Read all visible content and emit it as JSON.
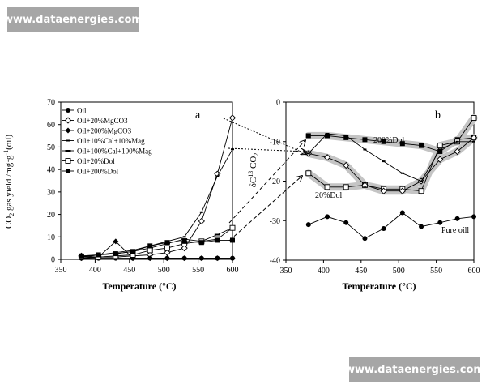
{
  "watermark": {
    "top": "www.dataenergies.com",
    "bottom": "www.dataenergies.com"
  },
  "chart_data": [
    {
      "id": "a",
      "panel_label": "a",
      "type": "line",
      "xlabel": "Temperature (°C)",
      "ylabel": "CO2 gas yield /mg·g⁻¹(oil)",
      "ylabel_parts": {
        "main": "CO",
        "sub": "2",
        "rest": " gas yield /mg·g",
        "sup": "-1",
        "tail": "(oil)"
      },
      "xlim": [
        350,
        600
      ],
      "ylim": [
        0,
        70
      ],
      "xticks": [
        350,
        400,
        450,
        500,
        550,
        600
      ],
      "yticks": [
        0,
        10,
        20,
        30,
        40,
        50,
        60,
        70
      ],
      "legend_position": "top-left",
      "series": [
        {
          "name": "Oil",
          "marker": "circle-filled",
          "x": [
            380,
            405,
            430,
            455,
            480,
            505,
            530,
            555,
            578,
            600
          ],
          "y": [
            0.5,
            0.5,
            0.5,
            0.5,
            0.5,
            0.5,
            0.5,
            0.5,
            0.5,
            0.5
          ]
        },
        {
          "name": "Oil+20%MgCO3",
          "marker": "diamond-open",
          "x": [
            380,
            405,
            430,
            455,
            480,
            505,
            530,
            555,
            578,
            600
          ],
          "y": [
            1.5,
            1,
            1,
            1.5,
            2,
            3,
            5,
            17,
            38,
            63
          ]
        },
        {
          "name": "Oil+200%MgCO3",
          "marker": "diamond-filled",
          "x": [
            380,
            405,
            430,
            455,
            480,
            505,
            530,
            555,
            578,
            600
          ],
          "y": [
            0.5,
            1,
            8,
            0.5,
            0.5,
            0.5,
            0.5,
            0.5,
            0.5,
            0.5
          ]
        },
        {
          "name": "Oil+10%Cal+10%Mag",
          "marker": "dash-small",
          "x": [
            380,
            405,
            430,
            455,
            480,
            505,
            530,
            555,
            578,
            600
          ],
          "y": [
            1,
            2,
            3,
            4,
            6,
            8,
            10,
            21,
            37,
            49
          ]
        },
        {
          "name": "Oil+100%Cal+100%Mag",
          "marker": "dash",
          "x": [
            380,
            405,
            430,
            455,
            480,
            505,
            530,
            555,
            578,
            600
          ],
          "y": [
            1,
            2,
            2.5,
            3.5,
            5,
            7,
            9,
            8,
            11,
            14
          ]
        },
        {
          "name": "Oil+20%Dol",
          "marker": "square-open",
          "x": [
            380,
            405,
            430,
            455,
            480,
            505,
            530,
            555,
            578,
            600
          ],
          "y": [
            1,
            1,
            1.5,
            2,
            4,
            5,
            7,
            8,
            9,
            14
          ]
        },
        {
          "name": "Oil+200%Dol",
          "marker": "square-filled",
          "x": [
            380,
            405,
            430,
            455,
            480,
            505,
            530,
            555,
            578,
            600
          ],
          "y": [
            1.5,
            2,
            2.5,
            3.5,
            6,
            7.5,
            8,
            7.5,
            8.5,
            8.5
          ]
        }
      ]
    },
    {
      "id": "b",
      "panel_label": "b",
      "type": "line",
      "xlabel": "Temperature (°C)",
      "ylabel": "δC¹³ CO2",
      "ylabel_parts": {
        "main": "δC",
        "sup": "13",
        "mid": " CO",
        "sub": "2"
      },
      "xlim": [
        350,
        600
      ],
      "ylim": [
        -40,
        0
      ],
      "xticks": [
        350,
        400,
        450,
        500,
        550,
        600
      ],
      "yticks": [
        0,
        -10,
        -20,
        -30,
        -40
      ],
      "series": [
        {
          "name": "Pure oill",
          "marker": "circle-filled",
          "band": false,
          "x": [
            380,
            405,
            430,
            455,
            480,
            505,
            530,
            555,
            578,
            600
          ],
          "y": [
            -31,
            -29,
            -30.5,
            -34.5,
            -32,
            -28,
            -31.5,
            -30.5,
            -29.5,
            -29
          ]
        },
        {
          "name": "200%Dol",
          "marker": "square-filled",
          "band": true,
          "x": [
            380,
            405,
            430,
            455,
            480,
            505,
            530,
            555,
            578,
            600
          ],
          "y": [
            -8.5,
            -8.5,
            -9,
            -9.5,
            -10,
            -10.5,
            -11,
            -12.5,
            -9.5,
            -9
          ]
        },
        {
          "name": "20%Dol",
          "marker": "square-open",
          "band": true,
          "x": [
            380,
            405,
            430,
            455,
            480,
            505,
            530,
            555,
            578,
            600
          ],
          "y": [
            -18,
            -21.5,
            -21.5,
            -21,
            -22,
            -22,
            -22.5,
            -11,
            -10,
            -4
          ]
        },
        {
          "name": "Oil+20%MgCO3",
          "marker": "diamond-open",
          "band": true,
          "x": [
            380,
            405,
            430,
            455,
            480,
            505,
            530,
            555,
            578,
            600
          ],
          "y": [
            -13,
            -14,
            -16,
            -21,
            -22.5,
            -22.5,
            -20,
            -14.5,
            -12.5,
            -9
          ]
        },
        {
          "name": "Oil+10%Cal+10%Mag",
          "marker": "dash-small",
          "band": false,
          "x": [
            380,
            405,
            430,
            455,
            480,
            505,
            530,
            555,
            578,
            600
          ],
          "y": [
            -13,
            -8,
            -8.5,
            -12,
            -15,
            -18,
            -20,
            -12,
            -10,
            -10
          ]
        }
      ],
      "annotations": [
        "200%Dol",
        "20%Dol",
        "Pure oill"
      ]
    }
  ]
}
